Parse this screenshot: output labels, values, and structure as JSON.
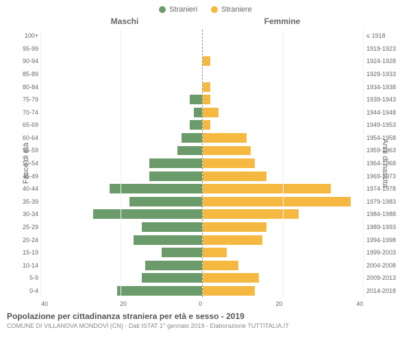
{
  "legend": {
    "male": {
      "label": "Stranieri",
      "color": "#6b9b6b"
    },
    "female": {
      "label": "Straniere",
      "color": "#f5b942"
    }
  },
  "title_male": "Maschi",
  "title_female": "Femmine",
  "y_label_left": "Fasce di età",
  "y_label_right": "Anni di nascita",
  "x_max": 40,
  "x_ticks": [
    0,
    20,
    40
  ],
  "background": "#ffffff",
  "grid_color": "#f0f0f0",
  "bar_height_pct": 75,
  "rows": [
    {
      "age": "100+",
      "birth": "≤ 1918",
      "m": 0,
      "f": 0
    },
    {
      "age": "95-99",
      "birth": "1919-1923",
      "m": 0,
      "f": 0
    },
    {
      "age": "90-94",
      "birth": "1924-1928",
      "m": 0,
      "f": 2
    },
    {
      "age": "85-89",
      "birth": "1929-1933",
      "m": 0,
      "f": 0
    },
    {
      "age": "80-84",
      "birth": "1934-1938",
      "m": 0,
      "f": 2
    },
    {
      "age": "75-79",
      "birth": "1939-1943",
      "m": 3,
      "f": 2
    },
    {
      "age": "70-74",
      "birth": "1944-1948",
      "m": 2,
      "f": 4
    },
    {
      "age": "65-69",
      "birth": "1949-1953",
      "m": 3,
      "f": 2
    },
    {
      "age": "60-64",
      "birth": "1954-1958",
      "m": 5,
      "f": 11
    },
    {
      "age": "55-59",
      "birth": "1959-1963",
      "m": 6,
      "f": 12
    },
    {
      "age": "50-54",
      "birth": "1964-1968",
      "m": 13,
      "f": 13
    },
    {
      "age": "45-49",
      "birth": "1969-1973",
      "m": 13,
      "f": 16
    },
    {
      "age": "40-44",
      "birth": "1974-1978",
      "m": 23,
      "f": 32
    },
    {
      "age": "35-39",
      "birth": "1979-1983",
      "m": 18,
      "f": 37
    },
    {
      "age": "30-34",
      "birth": "1984-1988",
      "m": 27,
      "f": 24
    },
    {
      "age": "25-29",
      "birth": "1989-1993",
      "m": 15,
      "f": 16
    },
    {
      "age": "20-24",
      "birth": "1994-1998",
      "m": 17,
      "f": 15
    },
    {
      "age": "15-19",
      "birth": "1999-2003",
      "m": 10,
      "f": 6
    },
    {
      "age": "10-14",
      "birth": "2004-2008",
      "m": 14,
      "f": 9
    },
    {
      "age": "5-9",
      "birth": "2009-2013",
      "m": 15,
      "f": 14
    },
    {
      "age": "0-4",
      "birth": "2014-2018",
      "m": 21,
      "f": 13
    }
  ],
  "footer": {
    "title": "Popolazione per cittadinanza straniera per età e sesso - 2019",
    "subtitle": "COMUNE DI VILLANOVA MONDOVÌ (CN) - Dati ISTAT 1° gennaio 2019 - Elaborazione TUTTITALIA.IT"
  }
}
